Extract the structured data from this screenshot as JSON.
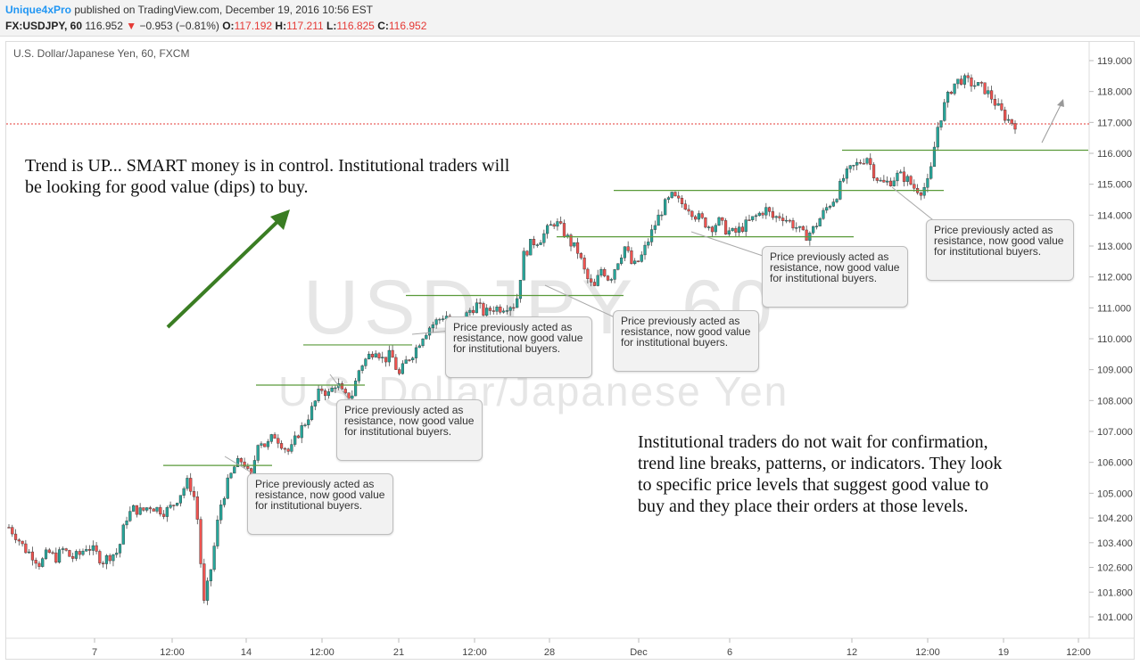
{
  "header": {
    "user": "Unique4xPro",
    "published": "published on TradingView.com, December 19, 2016 10:56 EST",
    "symbol": "FX:USDJPY, 60",
    "last": "116.952",
    "change_arrow": "▼",
    "change": "−0.953 (−0.81%)",
    "o_label": "O:",
    "o_value": "117.192",
    "h_label": "H:",
    "h_value": "117.211",
    "l_label": "L:",
    "l_value": "116.825",
    "c_label": "C:",
    "c_value": "116.952"
  },
  "chart_label": "U.S. Dollar/Japanese Yen, 60, FXCM",
  "watermark": {
    "symbol": "USDJPY, 60",
    "name": "U.S. Dollar/Japanese Yen"
  },
  "annotations": {
    "trend_note": "Trend is UP... SMART money is in control. Institutional traders will be looking for good value (dips) to buy.",
    "institution_note": "Institutional traders do not wait for confirmation, trend line breaks, patterns, or indicators. They look to specific price levels that suggest good value to buy and they place their orders at those levels.",
    "callout_text": "Price previously acted as resistance, now good value for institutional buyers."
  },
  "colors": {
    "up_candle": "#26a69a",
    "down_candle": "#ef5350",
    "level_line": "#5a9a3a",
    "trend_arrow": "#3a7d23",
    "price_line": "#e53935",
    "callout_border": "#bdbdbd",
    "callout_bg": "#f2f2f2"
  },
  "chart_data": {
    "type": "candlestick",
    "title": "U.S. Dollar/Japanese Yen, 60, FXCM",
    "ylim": [
      100.5,
      119.4
    ],
    "y_ticks": [
      "119.000",
      "118.000",
      "117.000",
      "116.000",
      "115.000",
      "114.000",
      "113.000",
      "112.000",
      "111.000",
      "110.000",
      "109.000",
      "108.000",
      "107.000",
      "106.000",
      "105.000",
      "104.200",
      "103.400",
      "102.600",
      "101.800",
      "101.000"
    ],
    "x_ticks": [
      "7",
      "12:00",
      "14",
      "12:00",
      "21",
      "12:00",
      "28",
      "Dec",
      "6",
      "12",
      "12:00",
      "19",
      "12:00"
    ],
    "current_price": 116.952,
    "close_path": [
      103.9,
      103.6,
      103.2,
      103.0,
      102.7,
      103.1,
      102.9,
      103.2,
      102.9,
      103.0,
      103.3,
      103.1,
      102.8,
      103.0,
      103.1,
      104.2,
      104.5,
      104.4,
      104.6,
      104.5,
      104.4,
      104.6,
      105.0,
      105.4,
      104.7,
      101.4,
      102.7,
      104.5,
      105.3,
      105.9,
      106.1,
      105.4,
      106.8,
      106.5,
      106.9,
      106.6,
      106.3,
      106.9,
      107.3,
      107.8,
      108.4,
      108.2,
      108.6,
      108.1,
      108.2,
      109.1,
      109.4,
      109.7,
      109.3,
      109.5,
      108.8,
      109.3,
      109.6,
      110.1,
      110.4,
      110.6,
      110.8,
      110.2,
      110.5,
      110.9,
      111.1,
      110.8,
      111.0,
      111.0,
      111.1,
      111.1,
      112.7,
      113.1,
      113.2,
      113.5,
      113.8,
      113.5,
      113.1,
      112.8,
      112.0,
      111.6,
      112.3,
      111.9,
      112.5,
      113.0,
      112.3,
      112.6,
      113.2,
      113.8,
      114.3,
      114.6,
      114.4,
      114.3,
      114.0,
      113.8,
      113.6,
      113.8,
      113.5,
      113.4,
      113.6,
      113.8,
      114.0,
      114.2,
      113.9,
      114.0,
      113.8,
      113.6,
      113.3,
      113.5,
      113.9,
      114.3,
      114.6,
      115.2,
      115.5,
      115.7,
      115.9,
      115.3,
      115.0,
      115.1,
      115.3,
      115.2,
      114.9,
      114.8,
      115.1,
      116.8,
      117.6,
      118.2,
      118.4,
      118.3,
      118.2,
      118.1,
      117.8,
      117.4,
      117.1,
      116.95
    ],
    "levels": [
      {
        "price": 105.9,
        "x1": 183,
        "x2": 305
      },
      {
        "price": 108.5,
        "x1": 287,
        "x2": 409
      },
      {
        "price": 109.8,
        "x1": 340,
        "x2": 462
      },
      {
        "price": 111.4,
        "x1": 455,
        "x2": 699
      },
      {
        "price": 113.3,
        "x1": 624,
        "x2": 957
      },
      {
        "price": 114.8,
        "x1": 688,
        "x2": 1058
      },
      {
        "price": 116.1,
        "x1": 944,
        "x2": 1220
      }
    ]
  }
}
